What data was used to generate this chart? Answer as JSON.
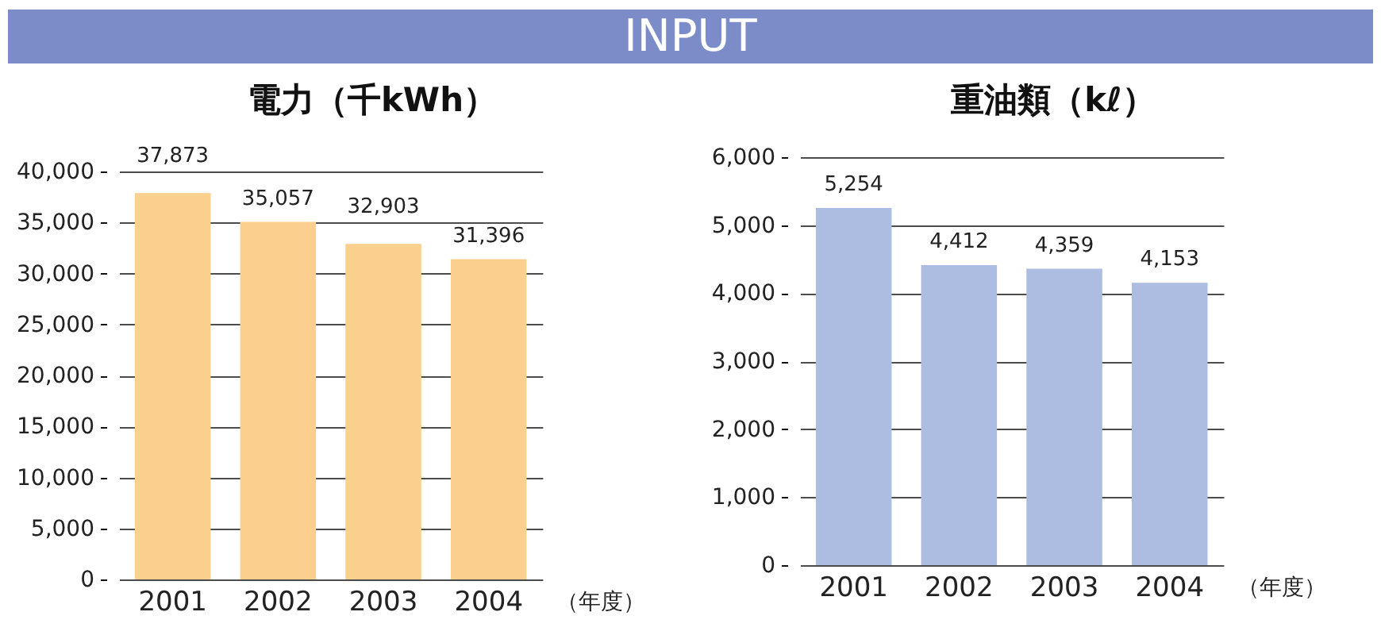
{
  "chart_data": [
    {
      "type": "other",
      "title": "INPUT"
    },
    {
      "type": "bar",
      "title": "電力（千kWh）",
      "xlabel": "（年度）",
      "categories": [
        "2001",
        "2002",
        "2003",
        "2004"
      ],
      "values": [
        37873,
        35057,
        32903,
        31396
      ],
      "value_labels": [
        "37,873",
        "35,057",
        "32,903",
        "31,396"
      ],
      "color": "#fbcf8e",
      "ylim": [
        0,
        40000
      ],
      "yticks": [
        {
          "value": 0,
          "label": "0"
        },
        {
          "value": 5000,
          "label": "5,000"
        },
        {
          "value": 10000,
          "label": "10,000"
        },
        {
          "value": 15000,
          "label": "15,000"
        },
        {
          "value": 20000,
          "label": "20,000"
        },
        {
          "value": 25000,
          "label": "25,000"
        },
        {
          "value": 30000,
          "label": "30,000"
        },
        {
          "value": 35000,
          "label": "35,000"
        },
        {
          "value": 40000,
          "label": "40,000"
        }
      ],
      "grid": "y"
    },
    {
      "type": "bar",
      "title": "重油類（kℓ）",
      "xlabel": "（年度）",
      "categories": [
        "2001",
        "2002",
        "2003",
        "2004"
      ],
      "values": [
        5254,
        4412,
        4359,
        4153
      ],
      "value_labels": [
        "5,254",
        "4,412",
        "4,359",
        "4,153"
      ],
      "color": "#adbde1",
      "ylim": [
        0,
        6000
      ],
      "yticks": [
        {
          "value": 0,
          "label": "0"
        },
        {
          "value": 1000,
          "label": "1,000"
        },
        {
          "value": 2000,
          "label": "2,000"
        },
        {
          "value": 3000,
          "label": "3,000"
        },
        {
          "value": 4000,
          "label": "4,000"
        },
        {
          "value": 5000,
          "label": "5,000"
        },
        {
          "value": 6000,
          "label": "6,000"
        }
      ],
      "grid": "y"
    }
  ]
}
